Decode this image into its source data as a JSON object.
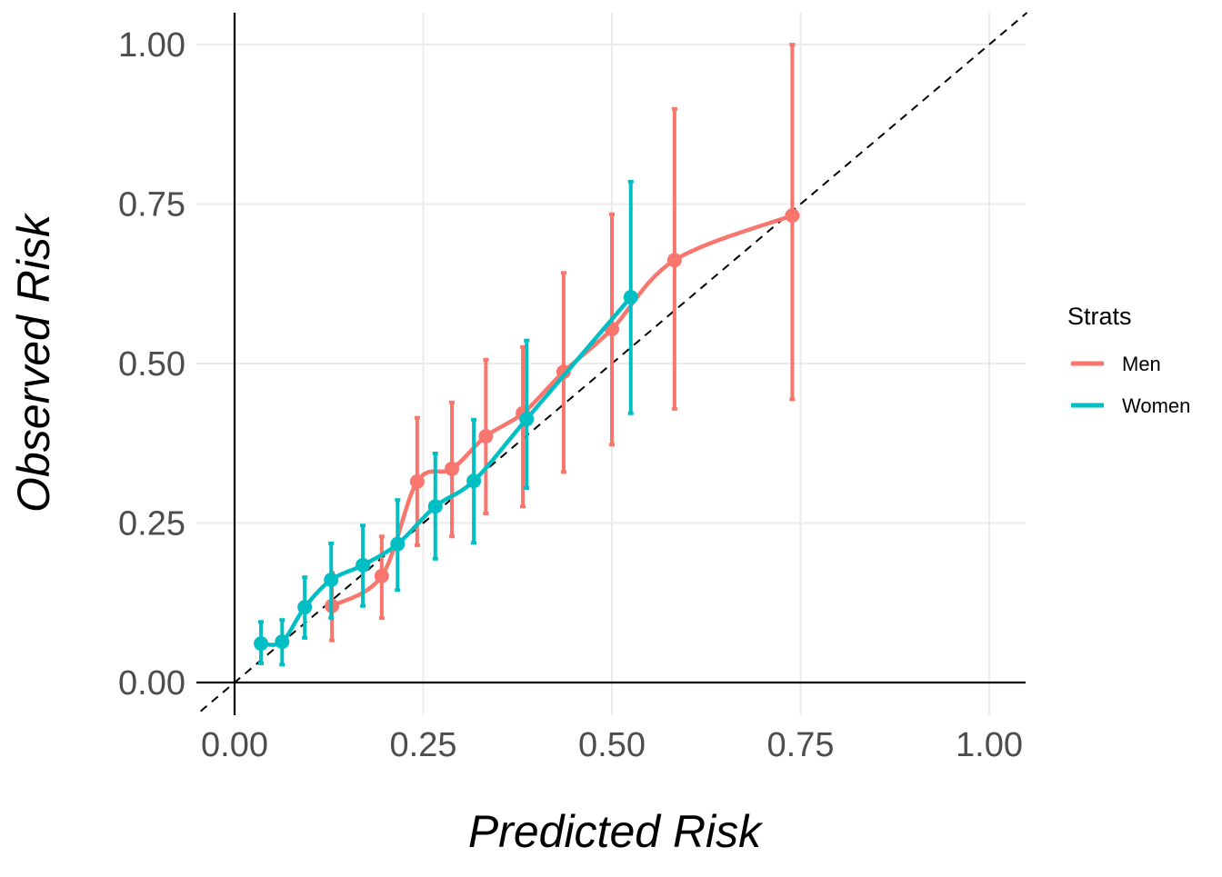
{
  "chart_data": {
    "type": "scatter",
    "xlabel": "Predicted Risk",
    "ylabel": "Observed Risk",
    "xlim": [
      -0.045,
      1.05
    ],
    "ylim": [
      -0.045,
      1.05
    ],
    "x_ticks": [
      0,
      0.25,
      0.5,
      0.75,
      1
    ],
    "x_tick_labels": [
      "0.00",
      "0.25",
      "0.50",
      "0.75",
      "1.00"
    ],
    "y_ticks": [
      0,
      0.25,
      0.5,
      0.75,
      1
    ],
    "y_tick_labels": [
      "0.00",
      "0.25",
      "0.50",
      "0.75",
      "1.00"
    ],
    "grid": true,
    "reference_line": "y = x (dashed)",
    "legend": {
      "title": "Strats",
      "placement": "right"
    },
    "series": [
      {
        "name": "Men",
        "color": "#F8766D",
        "points": [
          {
            "x": 0.129,
            "y": 0.12,
            "lo": 0.066,
            "hi": 0.172
          },
          {
            "x": 0.195,
            "y": 0.167,
            "lo": 0.101,
            "hi": 0.229
          },
          {
            "x": 0.242,
            "y": 0.315,
            "lo": 0.215,
            "hi": 0.415
          },
          {
            "x": 0.288,
            "y": 0.335,
            "lo": 0.229,
            "hi": 0.439
          },
          {
            "x": 0.333,
            "y": 0.386,
            "lo": 0.265,
            "hi": 0.506
          },
          {
            "x": 0.382,
            "y": 0.422,
            "lo": 0.276,
            "hi": 0.526
          },
          {
            "x": 0.436,
            "y": 0.487,
            "lo": 0.33,
            "hi": 0.642
          },
          {
            "x": 0.5,
            "y": 0.554,
            "lo": 0.373,
            "hi": 0.734
          },
          {
            "x": 0.583,
            "y": 0.662,
            "lo": 0.429,
            "hi": 0.899
          },
          {
            "x": 0.739,
            "y": 0.732,
            "lo": 0.444,
            "hi": 1.0
          }
        ]
      },
      {
        "name": "Women",
        "color": "#00BFC4",
        "points": [
          {
            "x": 0.035,
            "y": 0.061,
            "lo": 0.03,
            "hi": 0.095
          },
          {
            "x": 0.063,
            "y": 0.064,
            "lo": 0.028,
            "hi": 0.098
          },
          {
            "x": 0.093,
            "y": 0.118,
            "lo": 0.07,
            "hi": 0.165
          },
          {
            "x": 0.128,
            "y": 0.161,
            "lo": 0.101,
            "hi": 0.218
          },
          {
            "x": 0.17,
            "y": 0.184,
            "lo": 0.12,
            "hi": 0.246
          },
          {
            "x": 0.216,
            "y": 0.217,
            "lo": 0.145,
            "hi": 0.286
          },
          {
            "x": 0.266,
            "y": 0.276,
            "lo": 0.194,
            "hi": 0.359
          },
          {
            "x": 0.317,
            "y": 0.316,
            "lo": 0.219,
            "hi": 0.412
          },
          {
            "x": 0.387,
            "y": 0.413,
            "lo": 0.305,
            "hi": 0.536
          },
          {
            "x": 0.525,
            "y": 0.604,
            "lo": 0.422,
            "hi": 0.785
          }
        ]
      }
    ]
  }
}
